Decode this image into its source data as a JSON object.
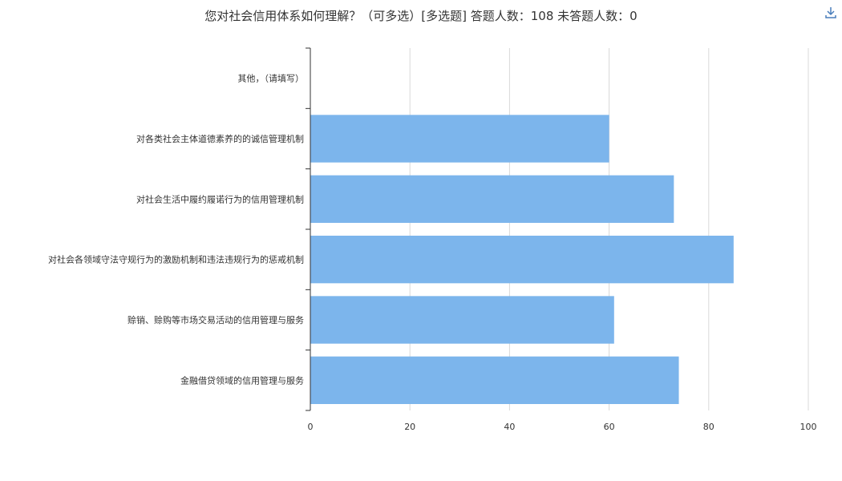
{
  "toolbar": {
    "download_icon": "download-icon"
  },
  "chart_data": {
    "type": "bar",
    "orientation": "horizontal",
    "title": "您对社会信用体系如何理解？（可多选）[多选题]  答题人数：108  未答题人数：0",
    "categories": [
      "其他，（请填写）",
      "对各类社会主体道德素养的的诚信管理机制",
      "对社会生活中履约履诺行为的信用管理机制",
      "对社会各领域守法守规行为的激励机制和违法违规行为的惩戒机制",
      "赊销、赊购等市场交易活动的信用管理与服务",
      "金融借贷领域的信用管理与服务"
    ],
    "values": [
      0,
      60,
      73,
      85,
      61,
      74
    ],
    "xlim": [
      0,
      100
    ],
    "xticks": [
      "0",
      "20",
      "40",
      "60",
      "80",
      "100"
    ],
    "grid": true,
    "bar_color": "#7cb5ec"
  }
}
